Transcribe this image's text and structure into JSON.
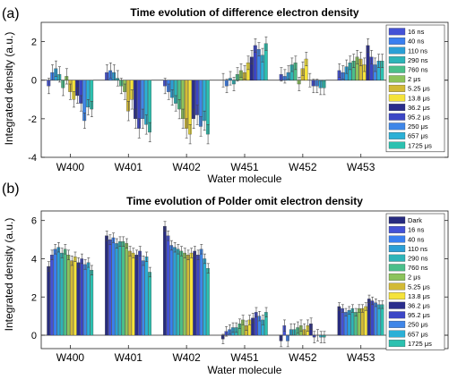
{
  "figure": {
    "panel_a_label": "(a)",
    "panel_b_label": "(b)"
  },
  "colors": {
    "dark": "#272b7f",
    "16ns": "#4452d6",
    "40ns": "#3a7ff0",
    "110ns": "#2b9fd6",
    "290ns": "#2db4b8",
    "760ns": "#4bbf8a",
    "2us": "#8cc35b",
    "5.25us": "#d2ba36",
    "13.8us": "#f5e33a",
    "36.2us": "#2a2d8c",
    "95.2us": "#3c46c6",
    "250us": "#3f86e8",
    "657us": "#2bb0d6",
    "1725us": "#2cc1b0"
  },
  "chart_data": [
    {
      "type": "bar",
      "panel": "(a)",
      "title": "Time evolution of difference electron density",
      "xlabel": "Water molecule",
      "ylabel": "Integrated density (a.u.)",
      "ylim": [
        -4,
        3
      ],
      "yticks": [
        -4,
        -2,
        0,
        2
      ],
      "grid": false,
      "legend_placement": "right",
      "categories": [
        "W400",
        "W401",
        "W402",
        "W451",
        "W452",
        "W453"
      ],
      "series": [
        {
          "name": "16 ns",
          "color_key": "16ns",
          "values": [
            -0.3,
            0.4,
            -0.3,
            0.0,
            0.3,
            0.5
          ],
          "err": [
            0.4,
            0.4,
            0.4,
            0.35,
            0.35,
            0.35
          ]
        },
        {
          "name": "40 ns",
          "color_key": "40ns",
          "values": [
            0.4,
            0.5,
            -0.6,
            -0.3,
            0.2,
            0.4
          ],
          "err": [
            0.4,
            0.4,
            0.4,
            0.35,
            0.35,
            0.35
          ]
        },
        {
          "name": "110 ns",
          "color_key": "110ns",
          "values": [
            0.6,
            0.4,
            -0.9,
            0.1,
            0.4,
            0.7
          ],
          "err": [
            0.4,
            0.4,
            0.4,
            0.35,
            0.35,
            0.35
          ]
        },
        {
          "name": "290 ns",
          "color_key": "290ns",
          "values": [
            0.3,
            0.1,
            -1.2,
            -0.2,
            0.8,
            0.9
          ],
          "err": [
            0.4,
            0.4,
            0.4,
            0.35,
            0.35,
            0.35
          ]
        },
        {
          "name": "760 ns",
          "color_key": "760ns",
          "values": [
            -0.4,
            -0.3,
            -1.5,
            0.3,
            0.9,
            1.0
          ],
          "err": [
            0.4,
            0.4,
            0.5,
            0.35,
            0.35,
            0.35
          ]
        },
        {
          "name": "2 μs",
          "color_key": "2us",
          "values": [
            0.2,
            -0.6,
            -2.0,
            0.5,
            -0.2,
            1.2
          ],
          "err": [
            0.4,
            0.4,
            0.5,
            0.35,
            0.35,
            0.35
          ]
        },
        {
          "name": "5.25 μs",
          "color_key": "5.25us",
          "values": [
            -0.6,
            -1.6,
            -2.5,
            0.4,
            0.6,
            1.1
          ],
          "err": [
            0.4,
            0.5,
            0.5,
            0.35,
            0.35,
            0.35
          ]
        },
        {
          "name": "13.8 μs",
          "color_key": "13.8us",
          "values": [
            -1.0,
            -1.0,
            -2.8,
            0.9,
            1.1,
            0.8
          ],
          "err": [
            0.4,
            0.5,
            0.5,
            0.35,
            0.35,
            0.35
          ]
        },
        {
          "name": "36.2 μs",
          "color_key": "36.2us",
          "values": [
            -0.8,
            -2.0,
            -2.0,
            1.2,
            0.0,
            1.8
          ],
          "err": [
            0.4,
            0.5,
            0.5,
            0.35,
            0.35,
            0.35
          ]
        },
        {
          "name": "95.2 μs",
          "color_key": "95.2us",
          "values": [
            -1.2,
            -2.5,
            -1.8,
            1.8,
            -0.3,
            1.2
          ],
          "err": [
            0.4,
            0.5,
            0.5,
            0.35,
            0.35,
            0.35
          ]
        },
        {
          "name": "250 μs",
          "color_key": "250us",
          "values": [
            -2.1,
            -2.0,
            -2.4,
            1.6,
            -0.3,
            0.8
          ],
          "err": [
            0.4,
            0.5,
            0.5,
            0.35,
            0.35,
            0.35
          ]
        },
        {
          "name": "657 μs",
          "color_key": "657us",
          "values": [
            -1.4,
            -2.3,
            -2.1,
            1.3,
            -0.4,
            1.0
          ],
          "err": [
            0.4,
            0.5,
            0.5,
            0.35,
            0.35,
            0.35
          ]
        },
        {
          "name": "1725 μs",
          "color_key": "1725us",
          "values": [
            -1.5,
            -2.7,
            -2.8,
            1.9,
            -0.4,
            1.0
          ],
          "err": [
            0.4,
            0.5,
            0.5,
            0.35,
            0.35,
            0.35
          ]
        }
      ]
    },
    {
      "type": "bar",
      "panel": "(b)",
      "title": "Time evolution of Polder omit electron density",
      "xlabel": "Water molecule",
      "ylabel": "Integrated density (a.u.)",
      "ylim": [
        -0.7,
        6.5
      ],
      "yticks": [
        0,
        2,
        4,
        6
      ],
      "grid": false,
      "legend_placement": "right",
      "categories": [
        "W400",
        "W401",
        "W402",
        "W451",
        "W452",
        "W453"
      ],
      "series": [
        {
          "name": "Dark",
          "color_key": "dark",
          "values": [
            3.6,
            5.2,
            5.7,
            -0.2,
            -0.3,
            1.5
          ],
          "err": [
            0.25,
            0.25,
            0.25,
            0.25,
            0.3,
            0.2
          ]
        },
        {
          "name": "16 ns",
          "color_key": "16ns",
          "values": [
            4.2,
            5.0,
            5.2,
            0.2,
            0.5,
            1.4
          ],
          "err": [
            0.25,
            0.25,
            0.25,
            0.25,
            0.3,
            0.2
          ]
        },
        {
          "name": "40 ns",
          "color_key": "40ns",
          "values": [
            4.5,
            5.1,
            4.7,
            0.3,
            -0.3,
            1.2
          ],
          "err": [
            0.25,
            0.25,
            0.25,
            0.25,
            0.3,
            0.2
          ]
        },
        {
          "name": "110 ns",
          "color_key": "110ns",
          "values": [
            4.6,
            4.8,
            4.6,
            0.4,
            0.3,
            1.3
          ],
          "err": [
            0.25,
            0.25,
            0.25,
            0.25,
            0.3,
            0.2
          ]
        },
        {
          "name": "290 ns",
          "color_key": "290ns",
          "values": [
            4.3,
            4.9,
            4.5,
            0.4,
            0.3,
            1.4
          ],
          "err": [
            0.25,
            0.25,
            0.25,
            0.25,
            0.3,
            0.2
          ]
        },
        {
          "name": "760 ns",
          "color_key": "760ns",
          "values": [
            4.5,
            4.9,
            4.4,
            0.6,
            0.4,
            1.2
          ],
          "err": [
            0.25,
            0.25,
            0.25,
            0.25,
            0.3,
            0.2
          ]
        },
        {
          "name": "2 μs",
          "color_key": "2us",
          "values": [
            4.2,
            4.8,
            4.3,
            0.8,
            0.5,
            1.4
          ],
          "err": [
            0.25,
            0.25,
            0.25,
            0.25,
            0.3,
            0.2
          ]
        },
        {
          "name": "5.25 μs",
          "color_key": "5.25us",
          "values": [
            3.9,
            4.4,
            4.2,
            0.5,
            0.3,
            1.4
          ],
          "err": [
            0.25,
            0.25,
            0.25,
            0.25,
            0.3,
            0.2
          ]
        },
        {
          "name": "13.8 μs",
          "color_key": "13.8us",
          "values": [
            4.1,
            4.3,
            4.3,
            0.8,
            0.5,
            1.5
          ],
          "err": [
            0.25,
            0.25,
            0.25,
            0.25,
            0.3,
            0.2
          ]
        },
        {
          "name": "36.2 μs",
          "color_key": "36.2us",
          "values": [
            3.8,
            4.2,
            4.4,
            0.9,
            0.6,
            1.9
          ],
          "err": [
            0.25,
            0.25,
            0.25,
            0.25,
            0.3,
            0.2
          ]
        },
        {
          "name": "95.2 μs",
          "color_key": "95.2us",
          "values": [
            4.0,
            4.4,
            4.2,
            1.2,
            -0.1,
            1.8
          ],
          "err": [
            0.25,
            0.25,
            0.25,
            0.25,
            0.3,
            0.2
          ]
        },
        {
          "name": "250 μs",
          "color_key": "250us",
          "values": [
            3.7,
            3.9,
            4.5,
            1.0,
            0.0,
            1.7
          ],
          "err": [
            0.25,
            0.25,
            0.25,
            0.25,
            0.3,
            0.2
          ]
        },
        {
          "name": "657 μs",
          "color_key": "657us",
          "values": [
            3.8,
            4.1,
            4.0,
            0.8,
            -0.1,
            1.6
          ],
          "err": [
            0.25,
            0.25,
            0.25,
            0.25,
            0.3,
            0.2
          ]
        },
        {
          "name": "1725 μs",
          "color_key": "1725us",
          "values": [
            3.4,
            3.3,
            3.5,
            1.2,
            -0.1,
            1.6
          ],
          "err": [
            0.25,
            0.25,
            0.25,
            0.25,
            0.3,
            0.2
          ]
        }
      ]
    }
  ]
}
